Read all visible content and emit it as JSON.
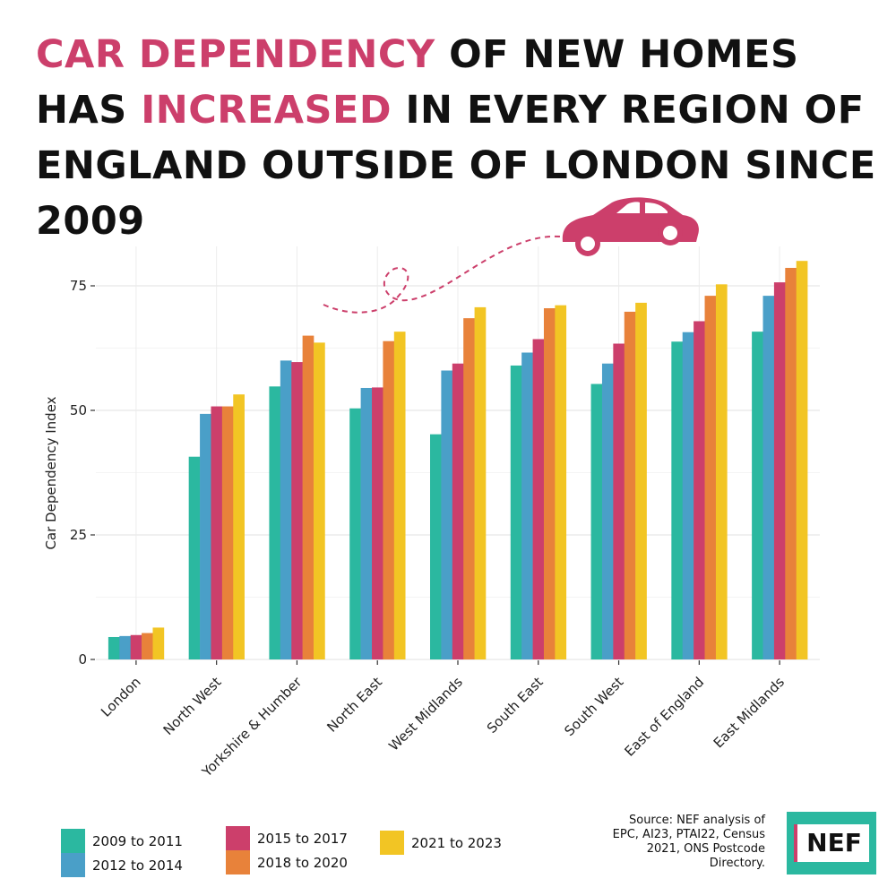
{
  "title": {
    "part1": "CAR DEPENDENCY",
    "part2": " OF NEW HOMES HAS ",
    "part3": "INCREASED",
    "part4": " IN EVERY REGION OF ENGLAND OUTSIDE OF LONDON SINCE 2009"
  },
  "colors": {
    "highlight": "#cc3f6b",
    "series": [
      "#2bb8a0",
      "#4a9fc8",
      "#cc3f6b",
      "#e8823a",
      "#f2c524"
    ]
  },
  "chart_data": {
    "type": "bar",
    "ylabel": "Car Dependency Index",
    "xlabel": "",
    "ylim": [
      0,
      80
    ],
    "yticks": [
      "0",
      "25",
      "50",
      "75"
    ],
    "categories": [
      "London",
      "North West",
      "Yorkshire & Humber",
      "North East",
      "West Midlands",
      "South East",
      "South West",
      "East of England",
      "East Midlands"
    ],
    "series": [
      {
        "name": "2009 to 2011",
        "values": [
          4.5,
          40.7,
          54.8,
          50.4,
          45.2,
          59.0,
          55.3,
          63.8,
          65.8
        ]
      },
      {
        "name": "2012 to 2014",
        "values": [
          4.7,
          49.3,
          60.0,
          54.5,
          58.0,
          61.6,
          59.4,
          65.7,
          73.0
        ]
      },
      {
        "name": "2015 to 2017",
        "values": [
          4.9,
          50.8,
          59.7,
          54.6,
          59.4,
          64.3,
          63.4,
          67.9,
          75.7
        ]
      },
      {
        "name": "2018 to 2020",
        "values": [
          5.3,
          50.8,
          65.0,
          63.9,
          68.5,
          70.5,
          69.8,
          73.0,
          78.6
        ]
      },
      {
        "name": "2021 to 2023",
        "values": [
          6.4,
          53.2,
          63.6,
          65.8,
          70.7,
          71.1,
          71.6,
          75.3,
          80.0
        ]
      }
    ],
    "grid": true,
    "legend_position": "bottom-left"
  },
  "source": "Source: NEF analysis of EPC, AI23, PTAI22, Census 2021, ONS Postcode Directory.",
  "logo": {
    "text": "NEF"
  },
  "icons": {
    "car": "car-icon",
    "path": "dashed-path-decoration"
  }
}
